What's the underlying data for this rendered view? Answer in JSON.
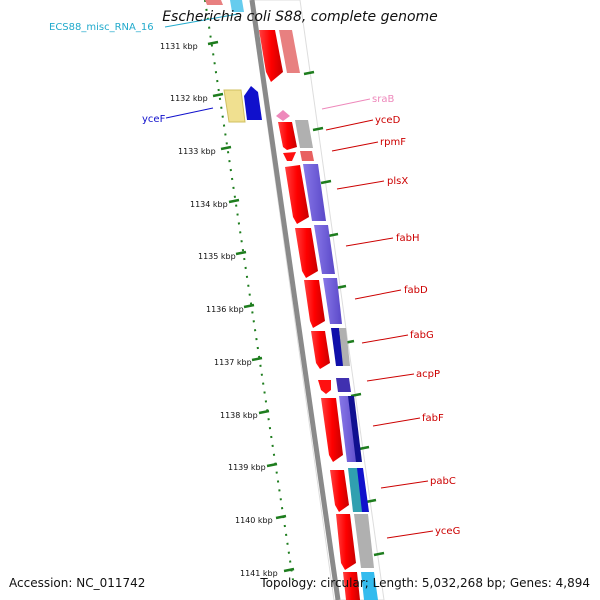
{
  "title": "Escherichia coli S88, complete genome",
  "footer": {
    "accession": "Accession: NC_011742",
    "summary": "Topology: circular; Length: 5,032,268 bp; Genes: 4,894"
  },
  "colors": {
    "backbone": "#8a8a8a",
    "tick": "#1e7d1e",
    "gene_red": "#ff1010",
    "cog_purple": "#7060d8",
    "cog_grey": "#b0b0b0",
    "label_red": "#cc0000",
    "label_blue": "#1010cc",
    "label_cyan": "#22aacc",
    "label_pink": "#ee88bb"
  },
  "ticks": [
    {
      "label": "1131 kbp"
    },
    {
      "label": "1132 kbp"
    },
    {
      "label": "1133 kbp"
    },
    {
      "label": "1134 kbp"
    },
    {
      "label": "1135 kbp"
    },
    {
      "label": "1136 kbp"
    },
    {
      "label": "1137 kbp"
    },
    {
      "label": "1138 kbp"
    },
    {
      "label": "1139 kbp"
    },
    {
      "label": "1140 kbp"
    },
    {
      "label": "1141 kbp"
    }
  ],
  "genes": [
    {
      "name": "ECS88_misc_RNA_16",
      "color": "#22aacc"
    },
    {
      "name": "yceF",
      "color": "#1010cc"
    },
    {
      "name": "sraB",
      "color": "#ee88bb"
    },
    {
      "name": "yceD",
      "color": "#cc0000"
    },
    {
      "name": "rpmF",
      "color": "#cc0000"
    },
    {
      "name": "plsX",
      "color": "#cc0000"
    },
    {
      "name": "fabH",
      "color": "#cc0000"
    },
    {
      "name": "fabD",
      "color": "#cc0000"
    },
    {
      "name": "fabG",
      "color": "#cc0000"
    },
    {
      "name": "acpP",
      "color": "#cc0000"
    },
    {
      "name": "fabF",
      "color": "#cc0000"
    },
    {
      "name": "pabC",
      "color": "#cc0000"
    },
    {
      "name": "yceG",
      "color": "#cc0000"
    }
  ]
}
